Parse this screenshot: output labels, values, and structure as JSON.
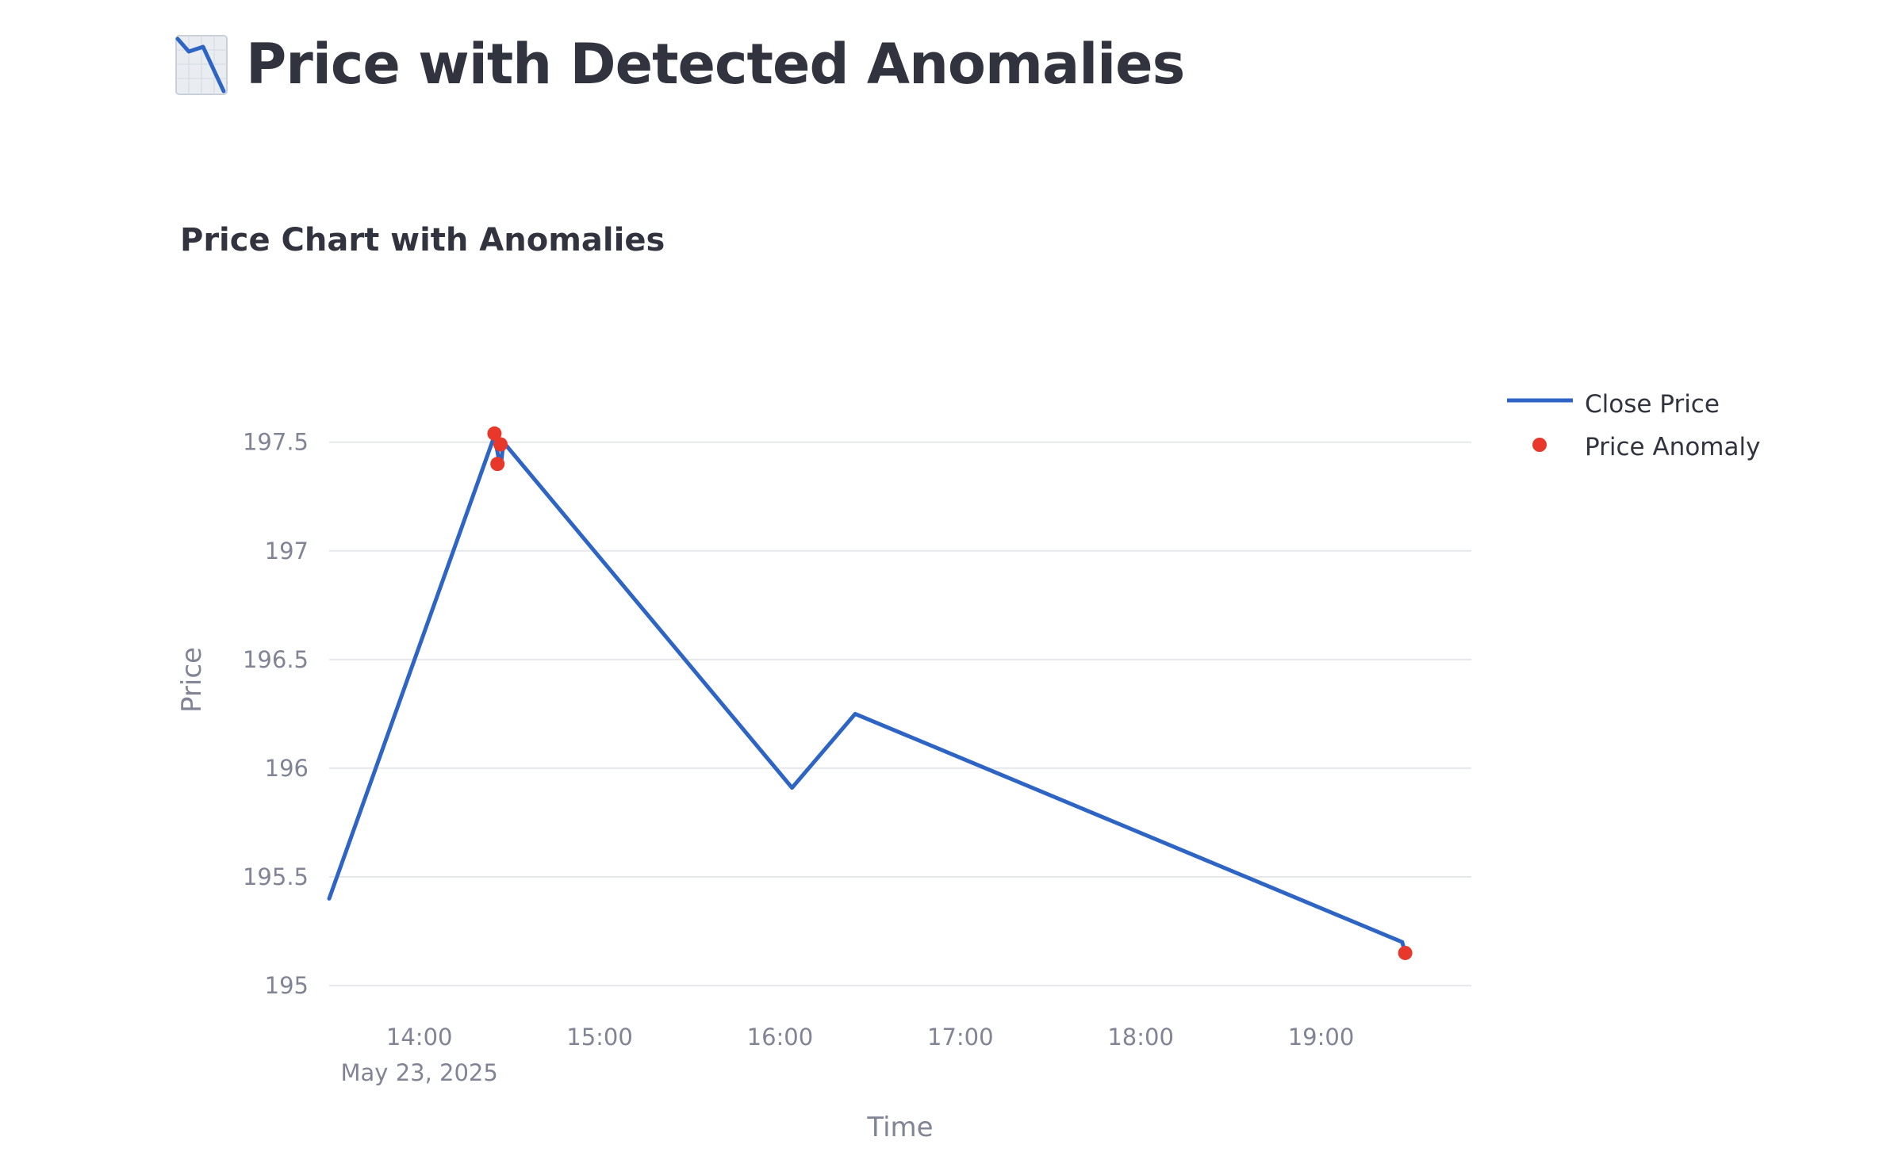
{
  "header": {
    "title": "Price with Detected Anomalies",
    "icon": "chart-decreasing-icon"
  },
  "chart_data": {
    "type": "line",
    "title": "Price Chart with Anomalies",
    "xlabel": "Time",
    "ylabel": "Price",
    "x_ticks": [
      "14:00",
      "15:00",
      "16:00",
      "17:00",
      "18:00",
      "19:00"
    ],
    "x_date_label": "May 23, 2025",
    "y_ticks": [
      "195",
      "195.5",
      "196",
      "196.5",
      "197",
      "197.5"
    ],
    "ylim": [
      194.92,
      197.82
    ],
    "xlim": [
      "13:30",
      "19:50"
    ],
    "grid": true,
    "legend_position": "top-right",
    "series": [
      {
        "name": "Close Price",
        "kind": "line",
        "color": "#2e64c4",
        "points": [
          {
            "x": "13:30",
            "y": 195.4
          },
          {
            "x": "14:25",
            "y": 197.53
          },
          {
            "x": "14:27",
            "y": 197.38
          },
          {
            "x": "14:28",
            "y": 197.5
          },
          {
            "x": "16:04",
            "y": 195.91
          },
          {
            "x": "16:25",
            "y": 196.25
          },
          {
            "x": "19:27",
            "y": 195.2
          },
          {
            "x": "19:28",
            "y": 195.15
          }
        ]
      },
      {
        "name": "Price Anomaly",
        "kind": "marker",
        "color": "#e8382c",
        "points": [
          {
            "x": "14:25",
            "y": 197.54
          },
          {
            "x": "14:26",
            "y": 197.4
          },
          {
            "x": "14:27",
            "y": 197.49
          },
          {
            "x": "19:28",
            "y": 195.15
          }
        ]
      }
    ]
  }
}
